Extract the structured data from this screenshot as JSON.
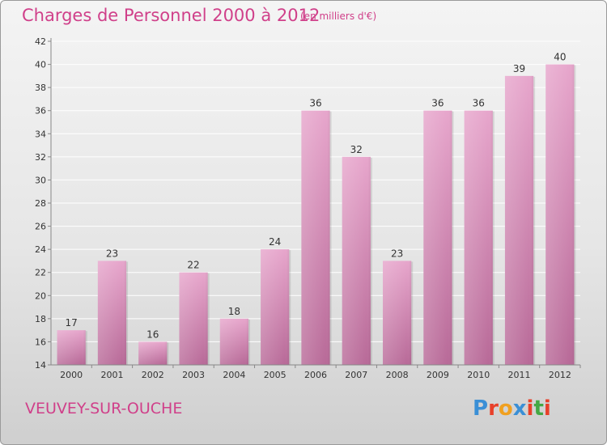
{
  "header": {
    "title": "Charges de Personnel 2000 à 2012",
    "subtitle": "(en milliers d'€)"
  },
  "footer": {
    "place": "VEUVEY-SUR-OUCHE",
    "brand": "Proxiti",
    "brand_colors": [
      "#3a8fd6",
      "#e8402a",
      "#f0a020",
      "#3a8fd6",
      "#e8402a",
      "#44a844",
      "#e8402a"
    ]
  },
  "colors": {
    "bar_top": "#e7a6cc",
    "bar_bottom": "#b86a98",
    "title": "#d0408a",
    "grid": "#ffffff",
    "axis_text": "#333333"
  },
  "chart_data": {
    "type": "bar",
    "title": "Charges de Personnel 2000 à 2012",
    "subtitle": "(en milliers d'€)",
    "categories": [
      "2000",
      "2001",
      "2002",
      "2003",
      "2004",
      "2005",
      "2006",
      "2007",
      "2008",
      "2009",
      "2010",
      "2011",
      "2012"
    ],
    "values": [
      17,
      23,
      16,
      22,
      18,
      24,
      36,
      32,
      23,
      36,
      36,
      39,
      40
    ],
    "ylim": [
      14,
      42
    ],
    "yticks": [
      14,
      16,
      18,
      20,
      22,
      24,
      26,
      28,
      30,
      32,
      34,
      36,
      38,
      40,
      42
    ],
    "grid": true,
    "data_labels": true
  }
}
